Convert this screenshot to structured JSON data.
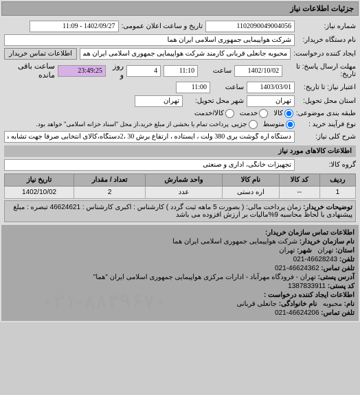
{
  "header": {
    "title": "جزئیات اطلاعات نیاز"
  },
  "form": {
    "req_number_label": "شماره نیاز:",
    "req_number": "1102090049004056",
    "announce_label": "تاریخ و ساعت اعلان عمومی:",
    "announce_value": "1402/09/27 - 11:09",
    "buyer_label": "نام دستگاه خریدار:",
    "buyer_value": "شرکت هواپیمایی جمهوری اسلامی ایران هما",
    "creator_label": "ایجاد کننده درخواست:",
    "creator_value": "محبوبه جانعلی قربانی کارمند شرکت هواپیمایی جمهوری اسلامی ایران هما",
    "contact_btn": "اطلاعات تماس خریدار",
    "deadline_label": "مهلت ارسال پاسخ: تا تاریخ:",
    "deadline_date": "1402/10/02",
    "time_label": "ساعت",
    "deadline_time": "11:10",
    "remaining_days": "4",
    "remaining_days_label": "روز و",
    "remaining_time": "23:49:25",
    "remaining_suffix": "ساعت باقی مانده",
    "validity_label": "اعتبار نیاز: تا تاریخ:",
    "validity_date": "1403/03/01",
    "validity_time": "11:00",
    "province_label": "استان محل تحویل:",
    "province_value": "تهران",
    "city_label": "شهر محل تحویل:",
    "city_value": "تهران",
    "package_label": "طبقه بندی موضوعی:",
    "package_opts": {
      "all": "کالا",
      "service": "خدمت",
      "both": "کالا/خدمت"
    },
    "payment_label": "نوع فرآیند خرید :",
    "payment_opts": {
      "low": "متوسط",
      "med": "جزیی"
    },
    "payment_note": "پرداخت تمام یا بخشی از مبلغ خرید،از محل \"اسناد خزانه اسلامی\" خواهد بود.",
    "keyword_label": "شرح کلی نیاز:",
    "keyword_value": "دستگاه اره گوشت بری 380 ولت ، ایستاده ، ارتفاع برش 30 ،2دستگاه،کالای انتخابی صرفا جهت تشابه میباشد"
  },
  "goods_header": "اطلاعات کالاهای مورد نیاز",
  "group_label": "گروه کالا:",
  "group_value": "تجهیزات خانگی، اداری و صنعتی",
  "table": {
    "cols": [
      "ردیف",
      "کد کالا",
      "نام کالا",
      "واحد شمارش",
      "تعداد / مقدار",
      "تاریخ نیاز"
    ],
    "rows": [
      [
        "1",
        "--",
        "اره دستی",
        "عدد",
        "2",
        "1402/10/02"
      ]
    ]
  },
  "notes": {
    "label": "توضیحات خریدار:",
    "text": "زمان پرداخت مالی: ( بصورت 5 ماهه ثبت گردد ) کارشناس : اکبری کارشناس : 46624621 تبصره : مبلغ پیشنهادی با لحاظ محاسبه 9%مالیات بر ارزش افزوده می باشد"
  },
  "contact": {
    "header": "اطلاعات تماس سازمان خریدار:",
    "org_label": "نام سازمان خریدار:",
    "org_value": "شرکت هواپیمایی جمهوری اسلامی ایران هما",
    "prov_label": "استان:",
    "prov_value": "تهران",
    "city_label": "شهر:",
    "city_value": "تهران",
    "tel_label": "تلفن:",
    "tel_value": "46628243-021",
    "fax_label": "تلفن تماس:",
    "fax_value": "46624362-021",
    "addr_label": "آدرس پستی:",
    "addr_value": "تهران - فرودگاه مهرآباد - ادارات مرکزی هواپیمایی جمهوری اسلامی ایران \"هما\"",
    "post_label": "کد پستی:",
    "post_value": "1387833911",
    "req_creator_label": "اطلاعات ایجاد کننده درخواست :",
    "name_label": "نام:",
    "name_value": "محبوبه",
    "lname_label": "نام خانوادگی:",
    "lname_value": "جانعلی قربانی",
    "ctel_label": "تلفن تماس:",
    "ctel_value": "46624206-021"
  },
  "watermark": "۰۲۱-۸۸۳۹۶۷۰"
}
